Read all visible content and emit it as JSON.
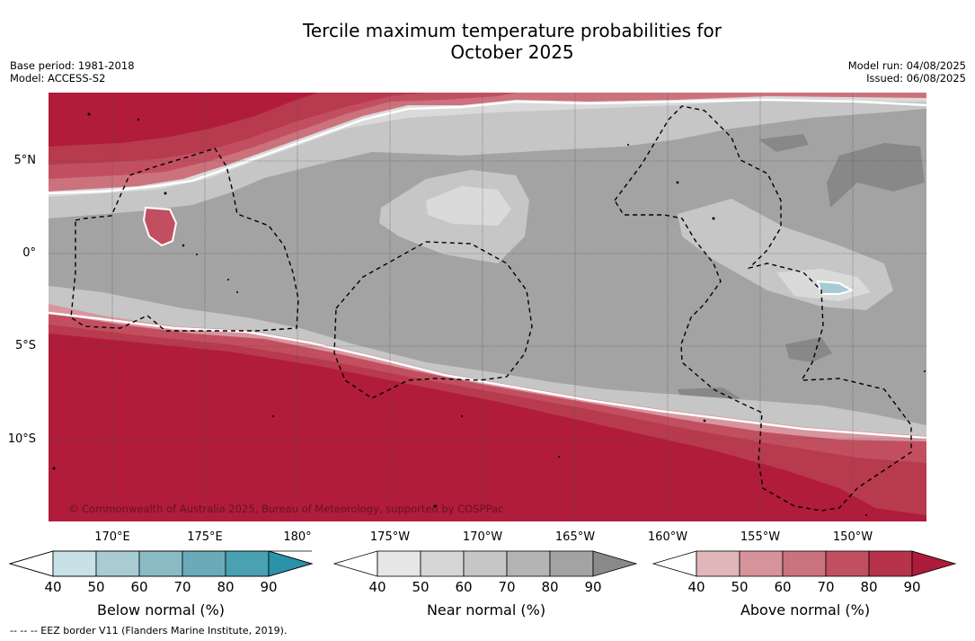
{
  "title_line1": "Tercile maximum temperature probabilities for",
  "title_line2": "October 2025",
  "base_period": "Base period: 1981-2018",
  "model": "Model: ACCESS-S2",
  "model_run": "Model run: 04/08/2025",
  "issued": "Issued: 06/08/2025",
  "copyright": "© Commonwealth of Australia 2025, Bureau of Meteorology, supported by COSPPac",
  "footnote": "--  --  -- EEZ border V11 (Flanders Marine Institute, 2019).",
  "lat_labels": [
    "5°N",
    "0°",
    "5°S",
    "10°S"
  ],
  "lon_labels": [
    "170°E",
    "175°E",
    "180°",
    "175°W",
    "170°W",
    "165°W",
    "160°W",
    "155°W",
    "150°W"
  ],
  "colorbars": [
    {
      "label": "Below normal (%)",
      "ticks": [
        "40",
        "50",
        "60",
        "70",
        "80",
        "90"
      ],
      "colors": [
        "#c8e1e6",
        "#a9ccd2",
        "#8abbc5",
        "#6aabb9",
        "#4aa1b2",
        "#2a93aa"
      ]
    },
    {
      "label": "Near normal (%)",
      "ticks": [
        "40",
        "50",
        "60",
        "70",
        "80",
        "90"
      ],
      "colors": [
        "#e6e6e6",
        "#d6d6d6",
        "#c6c6c6",
        "#b4b4b4",
        "#a3a3a3",
        "#8a8a8a"
      ]
    },
    {
      "label": "Above normal (%)",
      "ticks": [
        "40",
        "50",
        "60",
        "70",
        "80",
        "90"
      ],
      "colors": [
        "#e0b6ba",
        "#d6939b",
        "#ca727e",
        "#c05060",
        "#b73349",
        "#ad1a3a"
      ]
    }
  ],
  "legend_colors": {
    "above_90": "#b01c3a",
    "above_80": "#b83a4d",
    "above_70": "#c24f60",
    "above_60": "#cc727c",
    "above_50": "#d7969e",
    "near_40": "#dadada",
    "near_50": "#c6c6c6",
    "near_60": "#a3a3a3",
    "near_70": "#888888",
    "below_50": "#a6cbd3"
  }
}
